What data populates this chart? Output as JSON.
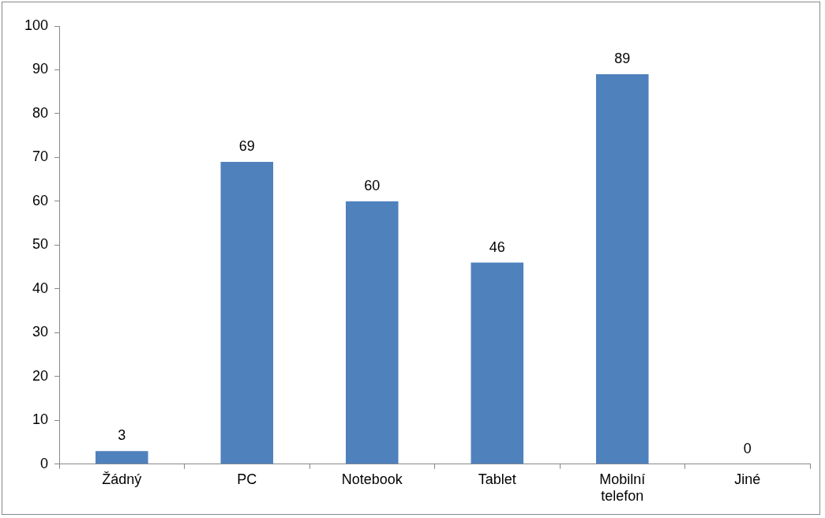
{
  "chart_data": {
    "type": "bar",
    "categories": [
      "Žádný",
      "PC",
      "Notebook",
      "Tablet",
      "Mobilní telefon",
      "Jiné"
    ],
    "values": [
      3,
      69,
      60,
      46,
      89,
      0
    ],
    "color": "#4f81bd",
    "ylim": [
      0,
      100
    ],
    "yticks": [
      0,
      10,
      20,
      30,
      40,
      50,
      60,
      70,
      80,
      90,
      100
    ],
    "grid": false,
    "legend": false,
    "data_labels": true
  }
}
